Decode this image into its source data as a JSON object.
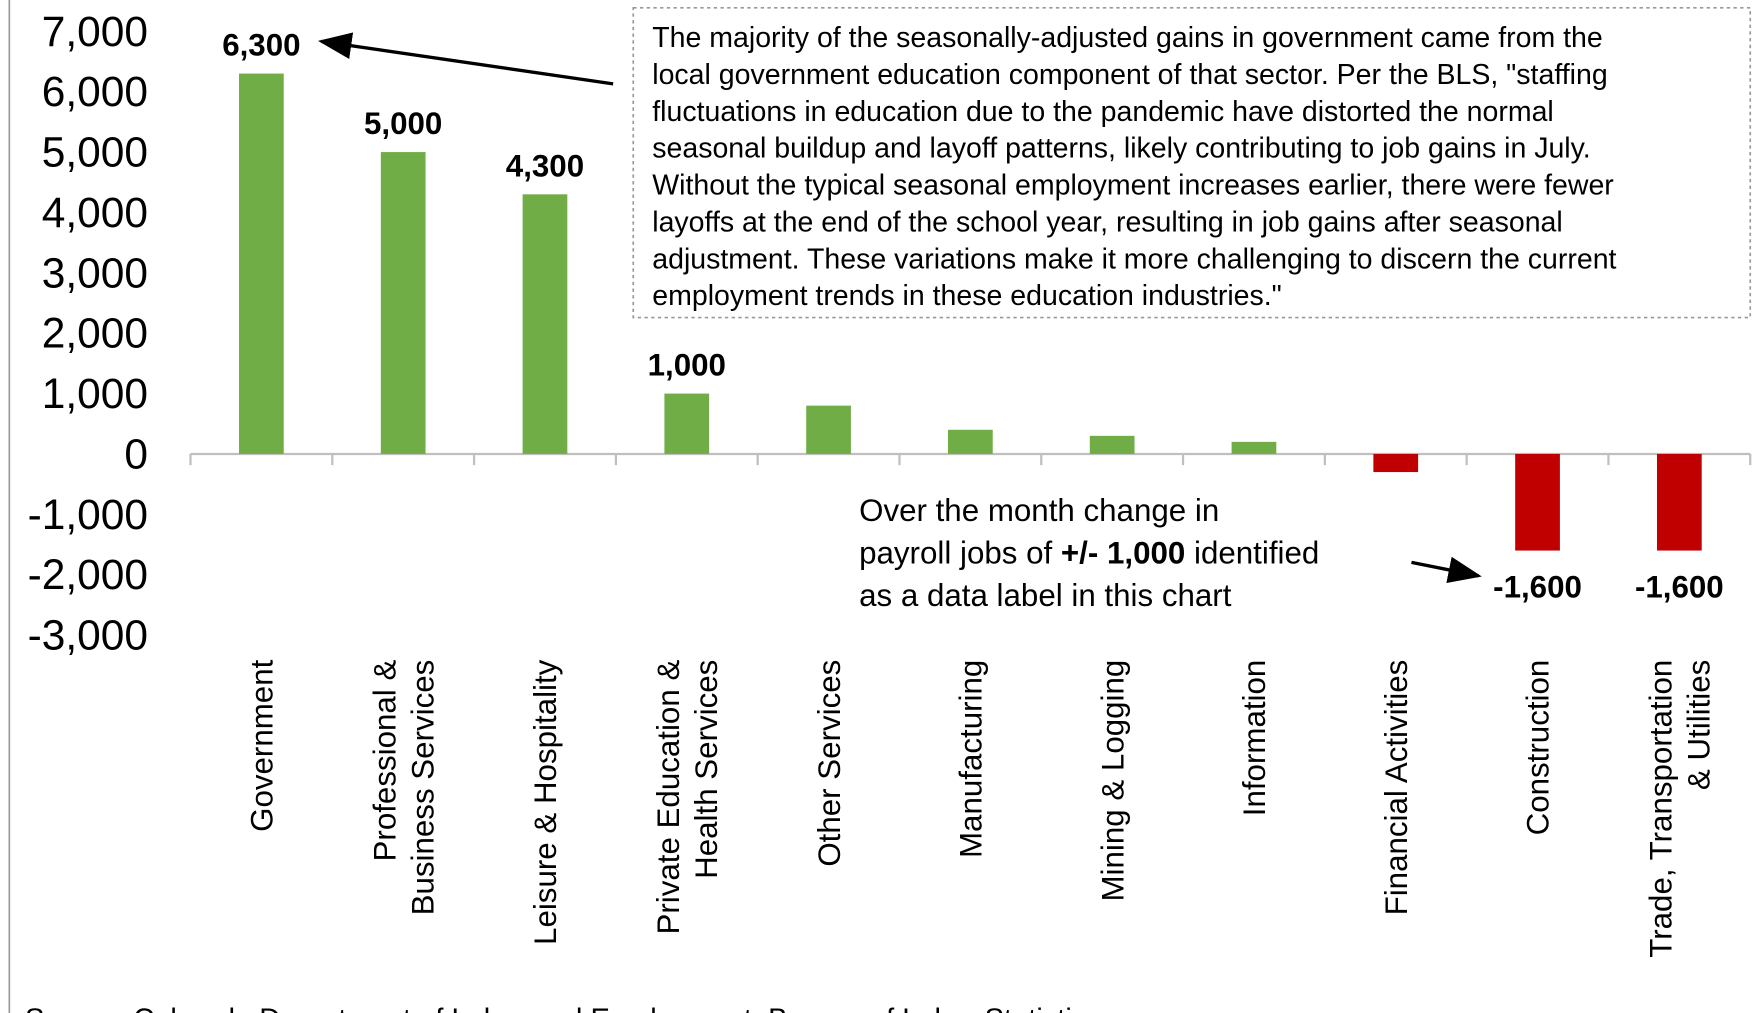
{
  "chart_data": {
    "type": "bar",
    "categories": [
      "Government",
      "Professional &\nBusiness Services",
      "Leisure & Hospitality",
      "Private Education &\nHealth Services",
      "Other Services",
      "Manufacturing",
      "Mining & Logging",
      "Information",
      "Financial Activities",
      "Construction",
      "Trade, Transportation\n& Utilities"
    ],
    "values": [
      6300,
      5000,
      4300,
      1000,
      800,
      400,
      300,
      200,
      -300,
      -1600,
      -1600
    ],
    "value_labels": [
      "6,300",
      "5,000",
      "4,300",
      "1,000",
      null,
      null,
      null,
      null,
      null,
      "-1,600",
      "-1,600"
    ],
    "positive_color": "#70ad47",
    "negative_color": "#c00000",
    "ylim": [
      -3000,
      7000
    ],
    "yticks": [
      {
        "value": 7000,
        "label": "7,000"
      },
      {
        "value": 6000,
        "label": "6,000"
      },
      {
        "value": 5000,
        "label": "5,000"
      },
      {
        "value": 4000,
        "label": "4,000"
      },
      {
        "value": 3000,
        "label": "3,000"
      },
      {
        "value": 2000,
        "label": "2,000"
      },
      {
        "value": 1000,
        "label": "1,000"
      },
      0,
      {
        "value": -1000,
        "label": "-1,000"
      },
      {
        "value": -2000,
        "label": "-2,000"
      },
      {
        "value": -3000,
        "label": "-3,000"
      }
    ],
    "grid": false,
    "annotation_box": [
      "The majority of the seasonally-adjusted gains in government came from the",
      "local government education component of that sector. Per the BLS, \"staffing",
      "fluctuations in education due to the pandemic have distorted the normal",
      "seasonal buildup and layoff patterns, likely contributing to job gains in July.",
      "Without the typical seasonal employment increases earlier, there were fewer",
      "layoffs at the end of the school year, resulting in job gains after seasonal",
      "adjustment. These variations make it more challenging to discern the current",
      "employment trends in these education industries.\""
    ],
    "note": [
      [
        "Over the month change in"
      ],
      [
        "payroll jobs of ",
        "+/- 1,000",
        " identified"
      ],
      [
        "as a data label in this chart"
      ]
    ],
    "source": "Source: Colorado Department of Labor and Employment, Bureau of Labor Statistics"
  }
}
